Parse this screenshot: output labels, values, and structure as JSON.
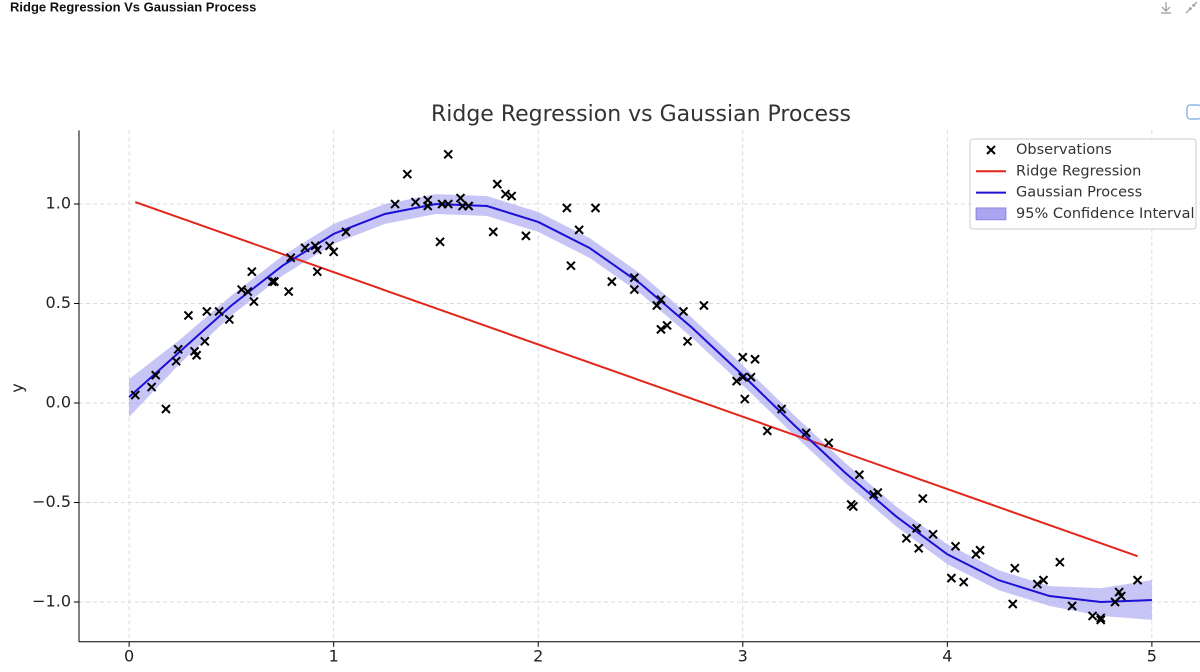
{
  "header": {
    "title": "Ridge Regression Vs Gaussian Process"
  },
  "chart_data": {
    "type": "line",
    "title": "Ridge Regression vs Gaussian Process",
    "ylabel": "y",
    "xlim": [
      -0.245,
      5.245
    ],
    "ylim": [
      -1.2,
      1.37
    ],
    "xticks": [
      0,
      1,
      2,
      3,
      4,
      5
    ],
    "yticks": [
      {
        "value": -1,
        "label": "−1.0"
      },
      {
        "value": -0.5,
        "label": "−0.5"
      },
      {
        "value": 0,
        "label": "0.0"
      },
      {
        "value": 0.5,
        "label": "0.5"
      },
      {
        "value": 1,
        "label": "1.0"
      }
    ],
    "grid": true,
    "legend": "upper right",
    "series": [
      {
        "name": "Observations",
        "type": "scatter",
        "color": "#000000",
        "x": [
          0.03,
          0.11,
          0.13,
          0.18,
          0.23,
          0.24,
          0.29,
          0.32,
          0.33,
          0.37,
          0.38,
          0.44,
          0.49,
          0.55,
          0.58,
          0.6,
          0.61,
          0.7,
          0.71,
          0.78,
          0.79,
          0.86,
          0.91,
          0.92,
          0.92,
          0.98,
          1.0,
          1.06,
          1.3,
          1.36,
          1.4,
          1.46,
          1.46,
          1.52,
          1.53,
          1.56,
          1.56,
          1.62,
          1.63,
          1.66,
          1.78,
          1.8,
          1.84,
          1.87,
          1.94,
          2.14,
          2.16,
          2.2,
          2.28,
          2.36,
          2.47,
          2.47,
          2.58,
          2.6,
          2.6,
          2.63,
          2.71,
          2.73,
          2.81,
          2.97,
          3.0,
          3.0,
          3.01,
          3.04,
          3.06,
          3.12,
          3.19,
          3.31,
          3.42,
          3.53,
          3.54,
          3.57,
          3.64,
          3.66,
          3.8,
          3.85,
          3.86,
          3.88,
          3.93,
          4.02,
          4.04,
          4.08,
          4.14,
          4.16,
          4.32,
          4.33,
          4.44,
          4.47,
          4.55,
          4.61,
          4.71,
          4.75,
          4.75,
          4.82,
          4.84,
          4.85,
          4.93
        ],
        "values": [
          0.04,
          0.08,
          0.14,
          -0.03,
          0.21,
          0.27,
          0.44,
          0.26,
          0.24,
          0.31,
          0.46,
          0.46,
          0.42,
          0.57,
          0.56,
          0.66,
          0.51,
          0.61,
          0.61,
          0.56,
          0.73,
          0.78,
          0.79,
          0.77,
          0.66,
          0.79,
          0.76,
          0.86,
          1.0,
          1.15,
          1.01,
          1.02,
          0.99,
          0.81,
          1.0,
          1.25,
          1.0,
          1.03,
          0.99,
          0.99,
          0.86,
          1.1,
          1.05,
          1.04,
          0.84,
          0.98,
          0.69,
          0.87,
          0.98,
          0.61,
          0.57,
          0.63,
          0.49,
          0.52,
          0.37,
          0.39,
          0.46,
          0.31,
          0.49,
          0.11,
          0.23,
          0.13,
          0.02,
          0.13,
          0.22,
          -0.14,
          -0.03,
          -0.15,
          -0.2,
          -0.51,
          -0.52,
          -0.36,
          -0.46,
          -0.45,
          -0.68,
          -0.63,
          -0.73,
          -0.48,
          -0.66,
          -0.88,
          -0.72,
          -0.9,
          -0.76,
          -0.74,
          -1.01,
          -0.83,
          -0.91,
          -0.89,
          -0.8,
          -1.02,
          -1.07,
          -1.08,
          -1.09,
          -1.0,
          -0.95,
          -0.97,
          -0.89
        ]
      },
      {
        "name": "Ridge Regression",
        "type": "line",
        "color": "#e3261b",
        "x": [
          0.03,
          4.93
        ],
        "values": [
          1.01,
          -0.77
        ]
      },
      {
        "name": "Gaussian Process",
        "type": "line",
        "color": "#1c0fd6",
        "x": [
          0,
          0.25,
          0.5,
          0.75,
          1,
          1.25,
          1.5,
          1.75,
          2,
          2.25,
          2.5,
          2.75,
          3,
          3.25,
          3.5,
          3.75,
          4,
          4.25,
          4.5,
          4.75,
          5
        ],
        "values": [
          0.03,
          0.26,
          0.49,
          0.69,
          0.85,
          0.95,
          1.0,
          0.99,
          0.91,
          0.78,
          0.6,
          0.38,
          0.14,
          -0.11,
          -0.35,
          -0.57,
          -0.76,
          -0.89,
          -0.97,
          -1.0,
          -0.99
        ]
      },
      {
        "name": "95% Confidence Interval",
        "type": "band",
        "color": "#a9a6ef",
        "x": [
          0,
          0.25,
          0.5,
          0.75,
          1,
          1.25,
          1.5,
          1.75,
          2,
          2.25,
          2.5,
          2.75,
          3,
          3.25,
          3.5,
          3.75,
          4,
          4.25,
          4.5,
          4.75,
          5
        ],
        "lower": [
          -0.07,
          0.2,
          0.44,
          0.64,
          0.8,
          0.9,
          0.95,
          0.94,
          0.86,
          0.73,
          0.55,
          0.33,
          0.09,
          -0.16,
          -0.4,
          -0.62,
          -0.81,
          -0.94,
          -1.02,
          -1.07,
          -1.09
        ],
        "upper": [
          0.12,
          0.32,
          0.54,
          0.74,
          0.9,
          1.0,
          1.05,
          1.04,
          0.96,
          0.83,
          0.65,
          0.43,
          0.19,
          -0.06,
          -0.3,
          -0.52,
          -0.71,
          -0.84,
          -0.92,
          -0.93,
          -0.89
        ]
      }
    ]
  }
}
